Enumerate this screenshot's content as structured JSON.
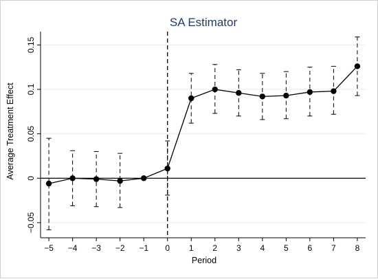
{
  "chart_data": {
    "type": "line",
    "title": "SA Estimator",
    "xlabel": "Period",
    "ylabel": "Average Treatment Effect",
    "x": [
      -5,
      -4,
      -3,
      -2,
      -1,
      0,
      1,
      2,
      3,
      4,
      5,
      6,
      7,
      8
    ],
    "x_tick_labels": [
      "−5",
      "−4",
      "−3",
      "−2",
      "−1",
      "0",
      "1",
      "2",
      "3",
      "4",
      "5",
      "6",
      "7",
      "8"
    ],
    "y_ticks": [
      -0.05,
      0,
      0.05,
      0.1,
      0.15
    ],
    "y_tick_labels": [
      "−0.05",
      "0",
      "0.05",
      "0.1",
      "0.15"
    ],
    "xlim": [
      -5.35,
      8.35
    ],
    "ylim": [
      -0.067,
      0.165
    ],
    "series": [
      {
        "values": [
          -0.006,
          0.0,
          -0.001,
          -0.003,
          0.0,
          0.011,
          0.09,
          0.1,
          0.096,
          0.092,
          0.093,
          0.097,
          0.098,
          0.126
        ],
        "ci_lower": [
          -0.058,
          -0.031,
          -0.032,
          -0.033,
          null,
          -0.019,
          0.062,
          0.073,
          0.07,
          0.066,
          0.067,
          0.07,
          0.072,
          0.093
        ],
        "ci_upper": [
          0.045,
          0.031,
          0.03,
          0.028,
          null,
          0.042,
          0.118,
          0.128,
          0.122,
          0.118,
          0.12,
          0.125,
          0.126,
          0.159
        ]
      }
    ],
    "reference_lines": {
      "horizontal_y": 0,
      "vertical_x": 0
    },
    "grid": true,
    "colors": {
      "line": "#000000",
      "grid": "#e6eef2",
      "title": "#1f3b6b"
    }
  }
}
